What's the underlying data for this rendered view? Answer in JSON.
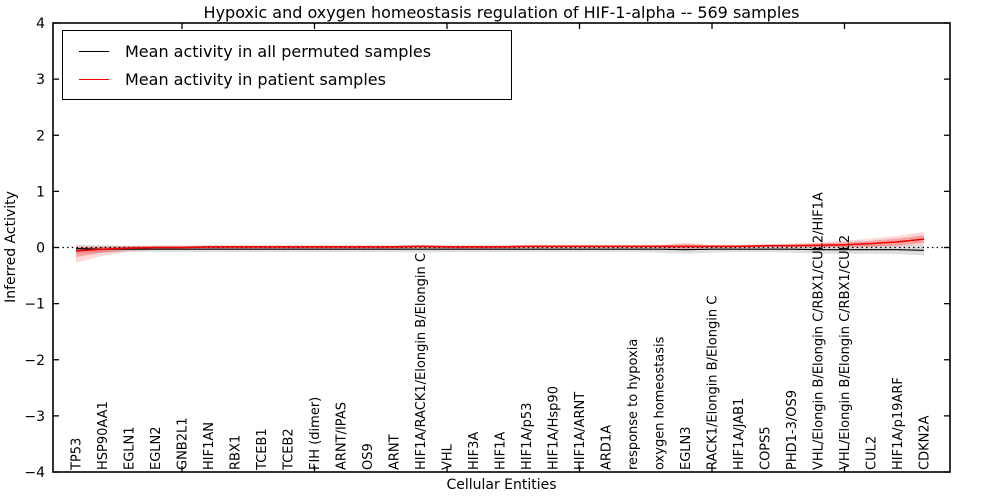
{
  "chart_data": {
    "type": "line",
    "title": "Hypoxic and oxygen homeostasis regulation of HIF-1-alpha -- 569 samples",
    "xlabel": "Cellular Entities",
    "ylabel": "Inferred Activity",
    "ylim": [
      -4,
      4
    ],
    "ytick_values": [
      4,
      3,
      2,
      1,
      0,
      -1,
      -2,
      -3,
      -4
    ],
    "xtick_major_indices": [
      4,
      9,
      14,
      19,
      24,
      29
    ],
    "zero_reference_line": 0,
    "grid": false,
    "legend_position": "upper left",
    "categories": [
      "TP53",
      "HSP90AA1",
      "EGLN1",
      "EGLN2",
      "GNB2L1",
      "HIF1AN",
      "RBX1",
      "TCEB1",
      "TCEB2",
      "FIH (dimer)",
      "ARNT/IPAS",
      "OS9",
      "ARNT",
      "HIF1A/RACK1/Elongin B/Elongin C",
      "VHL",
      "HIF3A",
      "HIF1A",
      "HIF1A/p53",
      "HIF1A/Hsp90",
      "HIF1A/ARNT",
      "ARD1A",
      "response to hypoxia",
      "oxygen homeostasis",
      "EGLN3",
      "RACK1/Elongin B/Elongin C",
      "HIF1A/JAB1",
      "COPS5",
      "PHD1-3/OS9",
      "VHL/Elongin B/Elongin C/RBX1/CUL2/HIF1A",
      "VHL/Elongin B/Elongin C/RBX1/CUL2",
      "CUL2",
      "HIF1A/p19ARF",
      "CDKN2A"
    ],
    "series": [
      {
        "name": "Mean activity in all permuted samples",
        "color": "#000000",
        "values": [
          -0.02,
          -0.03,
          -0.03,
          -0.03,
          -0.03,
          -0.03,
          -0.03,
          -0.03,
          -0.03,
          -0.03,
          -0.03,
          -0.03,
          -0.03,
          -0.03,
          -0.03,
          -0.03,
          -0.03,
          -0.03,
          -0.03,
          -0.03,
          -0.03,
          -0.03,
          -0.03,
          -0.04,
          -0.03,
          -0.03,
          -0.03,
          -0.03,
          -0.04,
          -0.04,
          -0.04,
          -0.04,
          -0.05
        ]
      },
      {
        "name": "Mean activity in patient samples",
        "color": "#f20000",
        "values": [
          -0.06,
          -0.03,
          -0.01,
          0.0,
          0.0,
          0.01,
          0.01,
          0.01,
          0.01,
          0.01,
          0.01,
          0.01,
          0.01,
          0.02,
          0.01,
          0.01,
          0.01,
          0.02,
          0.02,
          0.02,
          0.02,
          0.02,
          0.02,
          0.02,
          0.02,
          0.02,
          0.03,
          0.03,
          0.04,
          0.05,
          0.07,
          0.1,
          0.15
        ]
      }
    ],
    "bands": [
      {
        "name": "permuted-confidence-band",
        "color": "#000000",
        "opacity": 0.13,
        "upper": [
          0.05,
          0.04,
          0.03,
          0.03,
          0.03,
          0.03,
          0.03,
          0.03,
          0.03,
          0.03,
          0.03,
          0.03,
          0.03,
          0.04,
          0.03,
          0.03,
          0.03,
          0.03,
          0.03,
          0.03,
          0.03,
          0.03,
          0.03,
          0.04,
          0.03,
          0.03,
          0.03,
          0.04,
          0.04,
          0.04,
          0.04,
          0.05,
          0.05
        ],
        "lower": [
          -0.1,
          -0.09,
          -0.08,
          -0.08,
          -0.08,
          -0.08,
          -0.08,
          -0.08,
          -0.08,
          -0.08,
          -0.08,
          -0.08,
          -0.08,
          -0.09,
          -0.08,
          -0.08,
          -0.08,
          -0.08,
          -0.08,
          -0.08,
          -0.08,
          -0.08,
          -0.09,
          -0.11,
          -0.09,
          -0.08,
          -0.08,
          -0.09,
          -0.11,
          -0.11,
          -0.11,
          -0.12,
          -0.14
        ]
      },
      {
        "name": "patient-confidence-band-outer",
        "color": "#f20000",
        "opacity": 0.15,
        "upper": [
          0.02,
          0.02,
          0.03,
          0.03,
          0.03,
          0.04,
          0.04,
          0.04,
          0.04,
          0.04,
          0.04,
          0.04,
          0.04,
          0.05,
          0.04,
          0.04,
          0.04,
          0.05,
          0.05,
          0.05,
          0.05,
          0.05,
          0.05,
          0.08,
          0.05,
          0.05,
          0.06,
          0.07,
          0.09,
          0.12,
          0.16,
          0.21,
          0.28
        ],
        "lower": [
          -0.27,
          -0.15,
          -0.07,
          -0.04,
          -0.03,
          -0.02,
          -0.02,
          -0.02,
          -0.02,
          -0.02,
          -0.02,
          -0.02,
          -0.02,
          -0.01,
          -0.02,
          -0.02,
          -0.02,
          -0.01,
          -0.01,
          -0.01,
          -0.01,
          -0.01,
          -0.01,
          -0.05,
          -0.01,
          -0.01,
          0.0,
          0.0,
          0.0,
          0.0,
          0.01,
          0.02,
          0.05
        ]
      },
      {
        "name": "patient-confidence-band-inner",
        "color": "#f20000",
        "opacity": 0.25,
        "upper": [
          0.0,
          0.01,
          0.02,
          0.02,
          0.02,
          0.03,
          0.03,
          0.03,
          0.03,
          0.03,
          0.03,
          0.03,
          0.03,
          0.04,
          0.03,
          0.03,
          0.03,
          0.04,
          0.04,
          0.04,
          0.04,
          0.04,
          0.04,
          0.06,
          0.04,
          0.04,
          0.05,
          0.06,
          0.07,
          0.09,
          0.12,
          0.16,
          0.22
        ],
        "lower": [
          -0.17,
          -0.09,
          -0.04,
          -0.02,
          -0.02,
          -0.01,
          -0.01,
          -0.01,
          -0.01,
          -0.01,
          -0.01,
          -0.01,
          -0.01,
          0.0,
          -0.01,
          -0.01,
          -0.01,
          0.0,
          0.0,
          0.0,
          0.0,
          0.0,
          0.0,
          -0.02,
          0.0,
          0.0,
          0.01,
          0.01,
          0.01,
          0.01,
          0.02,
          0.04,
          0.08
        ]
      }
    ]
  }
}
